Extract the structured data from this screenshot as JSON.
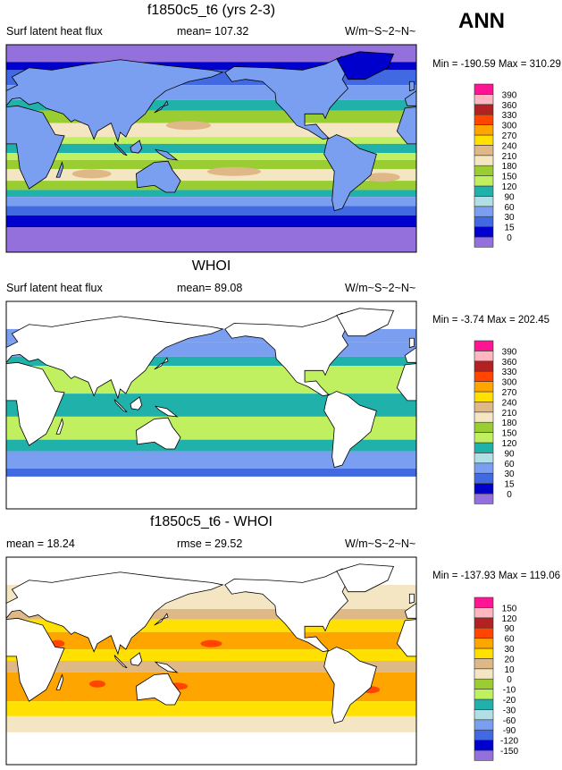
{
  "header": {
    "season": "ANN"
  },
  "palette_colors": [
    "#9370db",
    "#0000cd",
    "#4169e1",
    "#7b9ff0",
    "#b0e0e6",
    "#20b2aa",
    "#c0f060",
    "#9acd32",
    "#f5e6c3",
    "#deb887",
    "#ffe000",
    "#ffa500",
    "#ff4500",
    "#b22222",
    "#ffb6c1",
    "#ff1493"
  ],
  "panels": [
    {
      "title": "f1850c5_t6 (yrs 2-3)",
      "left": "Surf latent heat flux",
      "center": "mean= 107.32",
      "right": "W/m~S~2~N~",
      "minmax": "Min = -190.59 Max = 310.29",
      "levels": [
        "0",
        "15",
        "30",
        "60",
        "90",
        "120",
        "150",
        "180",
        "210",
        "240",
        "270",
        "300",
        "330",
        "360",
        "390"
      ]
    },
    {
      "title": "WHOI",
      "left": "Surf latent heat flux",
      "center": "mean=  89.08",
      "right": "W/m~S~2~N~",
      "minmax": "Min =  -3.74 Max = 202.45",
      "levels": [
        "0",
        "15",
        "30",
        "60",
        "90",
        "120",
        "150",
        "180",
        "210",
        "240",
        "270",
        "300",
        "330",
        "360",
        "390"
      ]
    },
    {
      "title": "f1850c5_t6 - WHOI",
      "left": "mean =  18.24",
      "center": "rmse =  29.52",
      "right": "W/m~S~2~N~",
      "minmax": "Min = -137.93 Max = 119.06",
      "levels": [
        "-150",
        "-120",
        "-90",
        "-60",
        "-30",
        "-20",
        "-10",
        "0",
        "10",
        "20",
        "30",
        "60",
        "90",
        "120",
        "150"
      ]
    }
  ]
}
